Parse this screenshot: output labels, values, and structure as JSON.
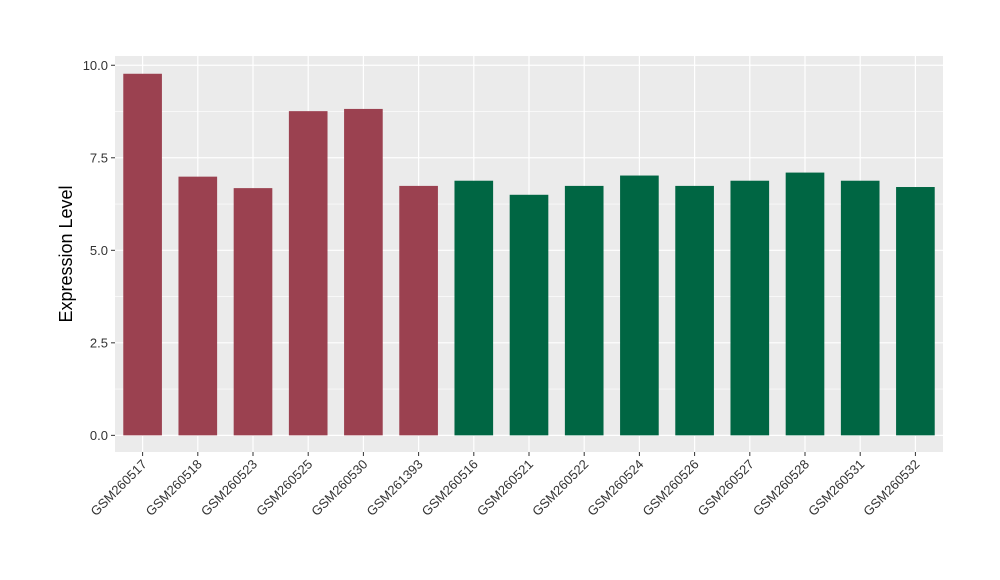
{
  "chart_data": {
    "type": "bar",
    "title": "",
    "xlabel": "",
    "ylabel": "Expression Level",
    "ylim": [
      -0.45,
      10.25
    ],
    "yticks": [
      "0.0",
      "2.5",
      "5.0",
      "7.5",
      "10.0"
    ],
    "ytick_values": [
      0,
      2.5,
      5,
      7.5,
      10
    ],
    "grid": true,
    "legend": "none",
    "categories": [
      "GSM260517",
      "GSM260518",
      "GSM260523",
      "GSM260525",
      "GSM260530",
      "GSM261393",
      "GSM260516",
      "GSM260521",
      "GSM260522",
      "GSM260524",
      "GSM260526",
      "GSM260527",
      "GSM260528",
      "GSM260531",
      "GSM260532"
    ],
    "values": [
      9.77,
      6.99,
      6.68,
      8.76,
      8.82,
      6.74,
      6.88,
      6.5,
      6.74,
      7.02,
      6.74,
      6.88,
      7.1,
      6.88,
      6.71
    ],
    "bar_colors": [
      "#9b4150",
      "#9b4150",
      "#9b4150",
      "#9b4150",
      "#9b4150",
      "#9b4150",
      "#006643",
      "#006643",
      "#006643",
      "#006643",
      "#006643",
      "#006643",
      "#006643",
      "#006643",
      "#006643"
    ]
  },
  "colors": {
    "panel_background": "#ebebeb",
    "grid": "#ffffff",
    "group_a": "#9b4150",
    "group_b": "#006643"
  }
}
